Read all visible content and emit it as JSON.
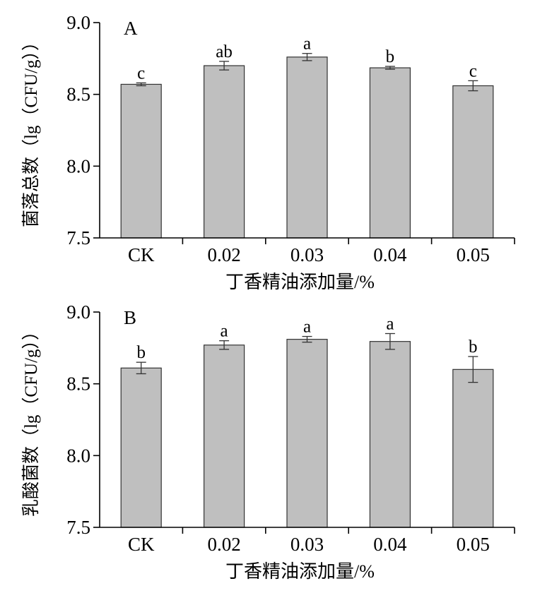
{
  "chart_data": [
    {
      "type": "bar",
      "panel_label": "A",
      "categories": [
        "CK",
        "0.02",
        "0.03",
        "0.04",
        "0.05"
      ],
      "values": [
        8.57,
        8.7,
        8.76,
        8.685,
        8.56
      ],
      "errors": [
        0.01,
        0.03,
        0.025,
        0.01,
        0.035
      ],
      "significance": [
        "c",
        "ab",
        "a",
        "b",
        "c"
      ],
      "xlabel": "丁香精油添加量/%",
      "ylabel": "菌落总数（lg（CFU/g））",
      "ylim": [
        7.5,
        9.0
      ],
      "yticks": [
        7.5,
        8.0,
        8.5,
        9.0
      ],
      "ytick_labels": [
        "7.5",
        "8.0",
        "8.5",
        "9.0"
      ],
      "grid": false
    },
    {
      "type": "bar",
      "panel_label": "B",
      "categories": [
        "CK",
        "0.02",
        "0.03",
        "0.04",
        "0.05"
      ],
      "values": [
        8.61,
        8.77,
        8.81,
        8.795,
        8.6
      ],
      "errors": [
        0.04,
        0.03,
        0.02,
        0.055,
        0.09
      ],
      "significance": [
        "b",
        "a",
        "a",
        "a",
        "b"
      ],
      "xlabel": "丁香精油添加量/%",
      "ylabel": "乳酸菌数（lg（CFU/g））",
      "ylim": [
        7.5,
        9.0
      ],
      "yticks": [
        7.5,
        8.0,
        8.5,
        9.0
      ],
      "ytick_labels": [
        "7.5",
        "8.0",
        "8.5",
        "9.0"
      ],
      "grid": false
    }
  ],
  "colors": {
    "bar_fill": "#bfbfbf",
    "bar_stroke": "#333333"
  }
}
